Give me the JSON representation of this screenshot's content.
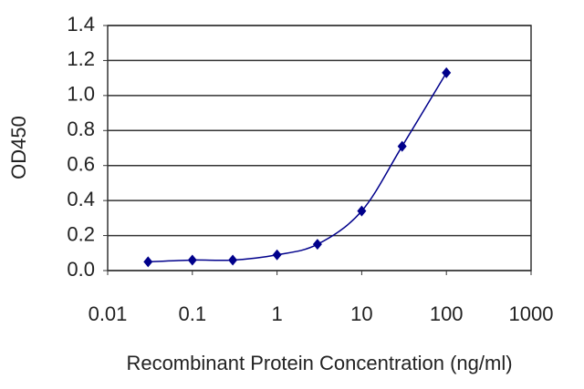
{
  "chart_data": {
    "type": "line",
    "x_label": "Recombinant Protein Concentration (ng/ml)",
    "y_label": "OD450",
    "x": [
      0.03,
      0.1,
      0.3,
      1,
      3,
      10,
      30,
      100
    ],
    "series": [
      {
        "color": "#00008b",
        "values": [
          0.05,
          0.06,
          0.06,
          0.09,
          0.15,
          0.34,
          0.71,
          1.13
        ]
      }
    ],
    "x_scale": "log",
    "xlim": [
      0.01,
      1000
    ],
    "xticks": [
      0.01,
      0.1,
      1,
      10,
      100,
      1000
    ],
    "ylim": [
      0,
      1.4
    ],
    "yticks": [
      {
        "value": 0,
        "label": "0.0"
      },
      0.2,
      0.4,
      0.6,
      0.8,
      {
        "value": 1,
        "label": "1.0"
      },
      1.2,
      1.4
    ],
    "grid": true
  }
}
